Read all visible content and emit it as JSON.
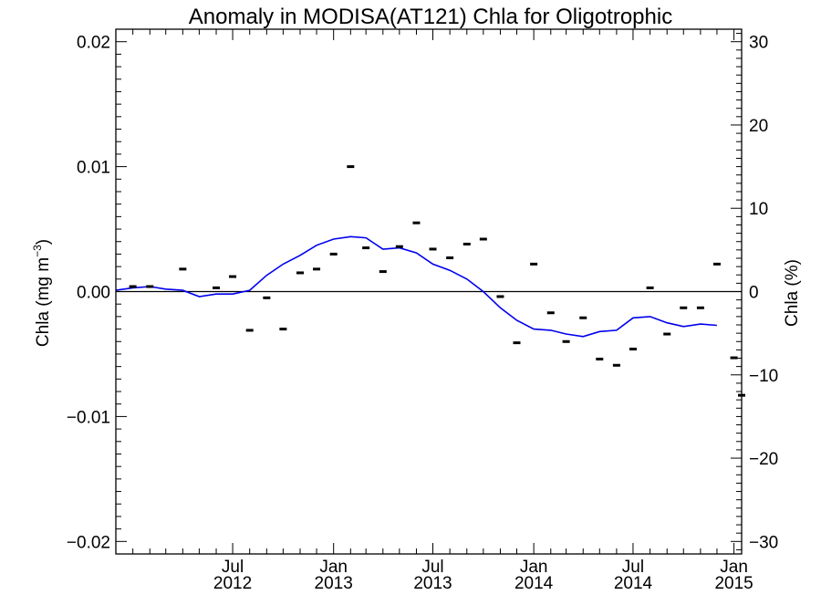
{
  "chart_data": {
    "type": "line+scatter",
    "title": "Anomaly in MODISA(AT121) Chla for Oligotrophic",
    "ylabel_left": {
      "main": "Chla (mg m",
      "sup": "−3",
      "close": ")"
    },
    "ylabel_right": "Chla (%)",
    "x_range": [
      "2011-12-01",
      "2015-01-15"
    ],
    "y_range_left": [
      -0.021,
      0.021
    ],
    "y_range_right": [
      -31.5,
      31.5
    ],
    "y_ticks_left": [
      {
        "value": 0.02,
        "label": "0.02"
      },
      {
        "value": 0.01,
        "label": "0.01"
      },
      {
        "value": 0.0,
        "label": "0.00"
      },
      {
        "value": -0.01,
        "label": "−0.01"
      },
      {
        "value": -0.02,
        "label": "−0.02"
      }
    ],
    "y_ticks_right": [
      {
        "value": 30,
        "label": "30"
      },
      {
        "value": 20,
        "label": "20"
      },
      {
        "value": 10,
        "label": "10"
      },
      {
        "value": 0,
        "label": "0"
      },
      {
        "value": -10,
        "label": "−10"
      },
      {
        "value": -20,
        "label": "−20"
      },
      {
        "value": -30,
        "label": "−30"
      }
    ],
    "x_ticks": [
      {
        "date": "2012-07-01",
        "month": "Jul",
        "year": "2012"
      },
      {
        "date": "2013-01-01",
        "month": "Jan",
        "year": "2013"
      },
      {
        "date": "2013-07-01",
        "month": "Jul",
        "year": "2013"
      },
      {
        "date": "2014-01-01",
        "month": "Jan",
        "year": "2014"
      },
      {
        "date": "2014-07-01",
        "month": "Jul",
        "year": "2014"
      },
      {
        "date": "2015-01-01",
        "month": "Jan",
        "year": "2015"
      }
    ],
    "points": [
      {
        "date": "2012-01-01",
        "y": 0.0004
      },
      {
        "date": "2012-02-01",
        "y": 0.0004
      },
      {
        "date": "2012-04-01",
        "y": 0.0018
      },
      {
        "date": "2012-06-01",
        "y": 0.0003
      },
      {
        "date": "2012-07-01",
        "y": 0.0012
      },
      {
        "date": "2012-08-01",
        "y": -0.0031
      },
      {
        "date": "2012-09-01",
        "y": -0.0005
      },
      {
        "date": "2012-10-01",
        "y": -0.003
      },
      {
        "date": "2012-11-01",
        "y": 0.0015
      },
      {
        "date": "2012-12-01",
        "y": 0.0018
      },
      {
        "date": "2013-01-01",
        "y": 0.003
      },
      {
        "date": "2013-02-01",
        "y": 0.01
      },
      {
        "date": "2013-03-01",
        "y": 0.0035
      },
      {
        "date": "2013-04-01",
        "y": 0.0016
      },
      {
        "date": "2013-05-01",
        "y": 0.0036
      },
      {
        "date": "2013-06-01",
        "y": 0.0055
      },
      {
        "date": "2013-07-01",
        "y": 0.0034
      },
      {
        "date": "2013-08-01",
        "y": 0.0027
      },
      {
        "date": "2013-09-01",
        "y": 0.0038
      },
      {
        "date": "2013-10-01",
        "y": 0.0042
      },
      {
        "date": "2013-11-01",
        "y": -0.0004
      },
      {
        "date": "2013-12-01",
        "y": -0.0041
      },
      {
        "date": "2014-01-01",
        "y": 0.0022
      },
      {
        "date": "2014-02-01",
        "y": -0.0017
      },
      {
        "date": "2014-03-01",
        "y": -0.004
      },
      {
        "date": "2014-04-01",
        "y": -0.0021
      },
      {
        "date": "2014-05-01",
        "y": -0.0054
      },
      {
        "date": "2014-06-01",
        "y": -0.0059
      },
      {
        "date": "2014-07-01",
        "y": -0.0046
      },
      {
        "date": "2014-08-01",
        "y": 0.0003
      },
      {
        "date": "2014-09-01",
        "y": -0.0034
      },
      {
        "date": "2014-10-01",
        "y": -0.0013
      },
      {
        "date": "2014-11-01",
        "y": -0.0013
      },
      {
        "date": "2014-12-01",
        "y": 0.0022
      },
      {
        "date": "2015-01-01",
        "y": -0.0053
      },
      {
        "date": "2015-01-15",
        "y": -0.0083
      }
    ],
    "trend": [
      {
        "date": "2011-12-01",
        "y": 0.0001
      },
      {
        "date": "2012-01-01",
        "y": 0.0003
      },
      {
        "date": "2012-02-01",
        "y": 0.0004
      },
      {
        "date": "2012-03-01",
        "y": 0.0002
      },
      {
        "date": "2012-04-01",
        "y": 0.0001
      },
      {
        "date": "2012-05-01",
        "y": -0.0004
      },
      {
        "date": "2012-06-01",
        "y": -0.0002
      },
      {
        "date": "2012-07-01",
        "y": -0.0002
      },
      {
        "date": "2012-08-01",
        "y": 0.0001
      },
      {
        "date": "2012-09-01",
        "y": 0.0013
      },
      {
        "date": "2012-10-01",
        "y": 0.0022
      },
      {
        "date": "2012-11-01",
        "y": 0.0029
      },
      {
        "date": "2012-12-01",
        "y": 0.0037
      },
      {
        "date": "2013-01-01",
        "y": 0.0042
      },
      {
        "date": "2013-02-01",
        "y": 0.0044
      },
      {
        "date": "2013-03-01",
        "y": 0.0043
      },
      {
        "date": "2013-04-01",
        "y": 0.0034
      },
      {
        "date": "2013-05-01",
        "y": 0.0035
      },
      {
        "date": "2013-06-01",
        "y": 0.0031
      },
      {
        "date": "2013-07-01",
        "y": 0.0022
      },
      {
        "date": "2013-08-01",
        "y": 0.0017
      },
      {
        "date": "2013-09-01",
        "y": 0.001
      },
      {
        "date": "2013-10-01",
        "y": 0.0
      },
      {
        "date": "2013-11-01",
        "y": -0.0013
      },
      {
        "date": "2013-12-01",
        "y": -0.0023
      },
      {
        "date": "2014-01-01",
        "y": -0.003
      },
      {
        "date": "2014-02-01",
        "y": -0.0031
      },
      {
        "date": "2014-03-01",
        "y": -0.0034
      },
      {
        "date": "2014-04-01",
        "y": -0.0036
      },
      {
        "date": "2014-05-01",
        "y": -0.0032
      },
      {
        "date": "2014-06-01",
        "y": -0.0031
      },
      {
        "date": "2014-07-01",
        "y": -0.0021
      },
      {
        "date": "2014-08-01",
        "y": -0.002
      },
      {
        "date": "2014-09-01",
        "y": -0.0025
      },
      {
        "date": "2014-10-01",
        "y": -0.0028
      },
      {
        "date": "2014-11-01",
        "y": -0.0026
      },
      {
        "date": "2014-12-01",
        "y": -0.0027
      }
    ],
    "zero_line": 0.0,
    "grid": false,
    "colors": {
      "trend": "#0000ee",
      "points": "#000000",
      "axes": "#000000",
      "background": "#ffffff"
    }
  }
}
